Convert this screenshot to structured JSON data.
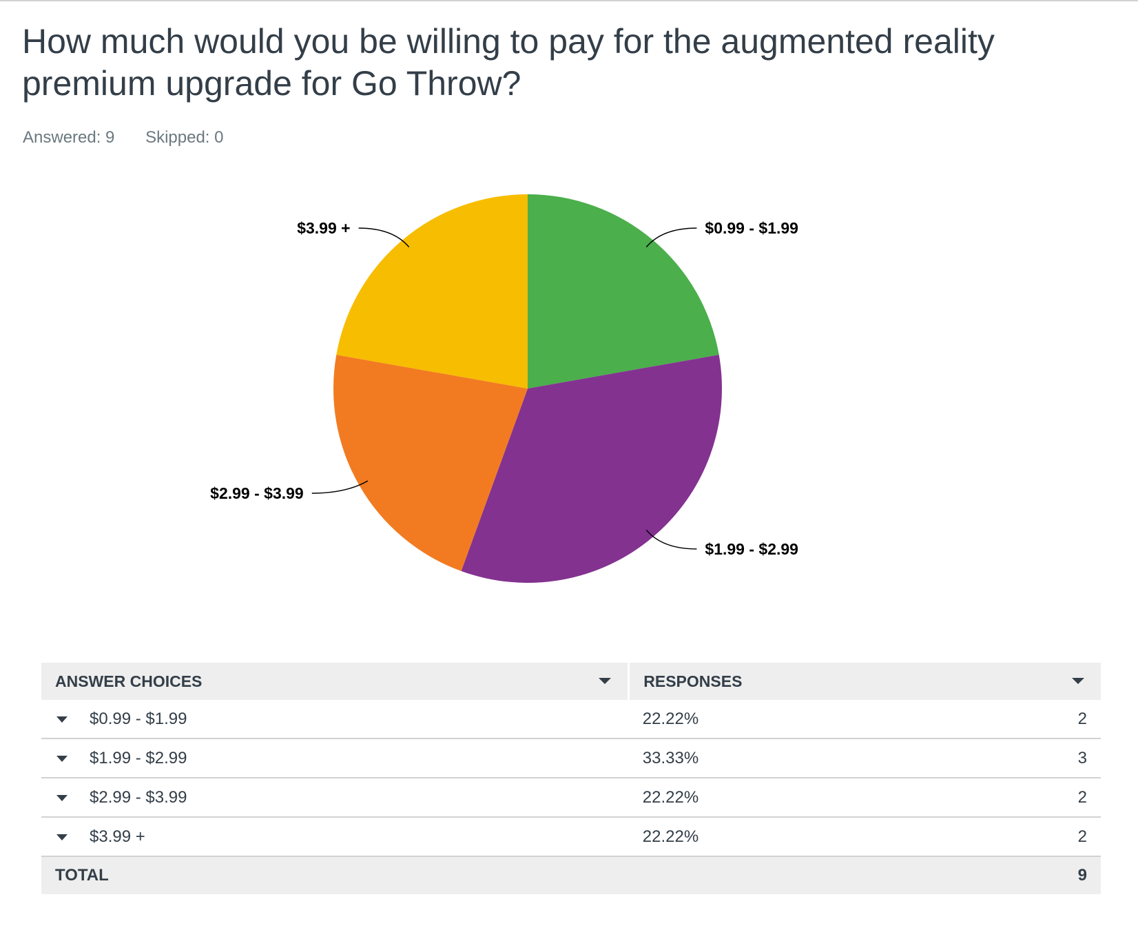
{
  "question": {
    "title": "How much would you be willing to pay for the augmented reality premium upgrade for Go Throw?",
    "answered": "Answered: 9",
    "skipped": "Skipped: 0"
  },
  "chart_data": {
    "type": "pie",
    "categories": [
      "$0.99 - $1.99",
      "$1.99 - $2.99",
      "$2.99 - $3.99",
      "$3.99 +"
    ],
    "values": [
      2,
      3,
      2,
      2
    ],
    "colors": [
      "#4baf4b",
      "#833290",
      "#f27b21",
      "#f7bd00"
    ],
    "start": "12 o'clock",
    "direction": "clockwise"
  },
  "table": {
    "headers": {
      "choices": "ANSWER CHOICES",
      "responses": "RESPONSES"
    },
    "rows": [
      {
        "choice": "$0.99 - $1.99",
        "percent": "22.22%",
        "count": "2"
      },
      {
        "choice": "$1.99 - $2.99",
        "percent": "33.33%",
        "count": "3"
      },
      {
        "choice": "$2.99 - $3.99",
        "percent": "22.22%",
        "count": "2"
      },
      {
        "choice": "$3.99 +",
        "percent": "22.22%",
        "count": "2"
      }
    ],
    "total_label": "TOTAL",
    "total_count": "9"
  }
}
